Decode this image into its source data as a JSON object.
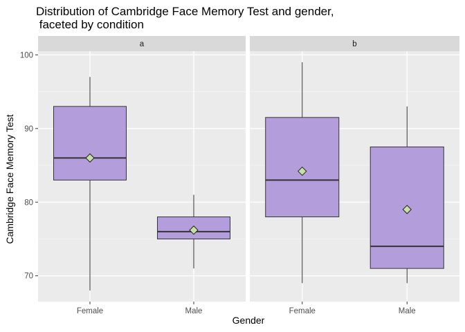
{
  "chart_data": {
    "type": "boxplot",
    "title_line1": "Distribution of Cambridge Face Memory Test and gender,",
    "title_line2": " faceted by condition",
    "xlabel": "Gender",
    "ylabel": "Cambridge Face Memory Test",
    "ylim": [
      66.5,
      100.5
    ],
    "yticks": [
      70,
      80,
      90,
      100
    ],
    "categories": [
      "Female",
      "Male"
    ],
    "grid": true,
    "colors": {
      "panel": "#ebebeb",
      "strip": "#d9d9d9",
      "box_fill": "#b39ddb",
      "mean_marker": "#c5e1a5",
      "grid_major": "#ffffff"
    },
    "facets": [
      {
        "label": "a",
        "boxes": [
          {
            "category": "Female",
            "min": 68,
            "q1": 83,
            "median": 86,
            "q3": 93,
            "max": 97,
            "mean": 86
          },
          {
            "category": "Male",
            "min": 71,
            "q1": 75,
            "median": 76,
            "q3": 78,
            "max": 81,
            "mean": 76.2
          }
        ]
      },
      {
        "label": "b",
        "boxes": [
          {
            "category": "Female",
            "min": 69,
            "q1": 78,
            "median": 83,
            "q3": 91.5,
            "max": 99,
            "mean": 84.2
          },
          {
            "category": "Male",
            "min": 69,
            "q1": 71,
            "median": 74,
            "q3": 87.5,
            "max": 93,
            "mean": 79
          }
        ]
      }
    ]
  }
}
